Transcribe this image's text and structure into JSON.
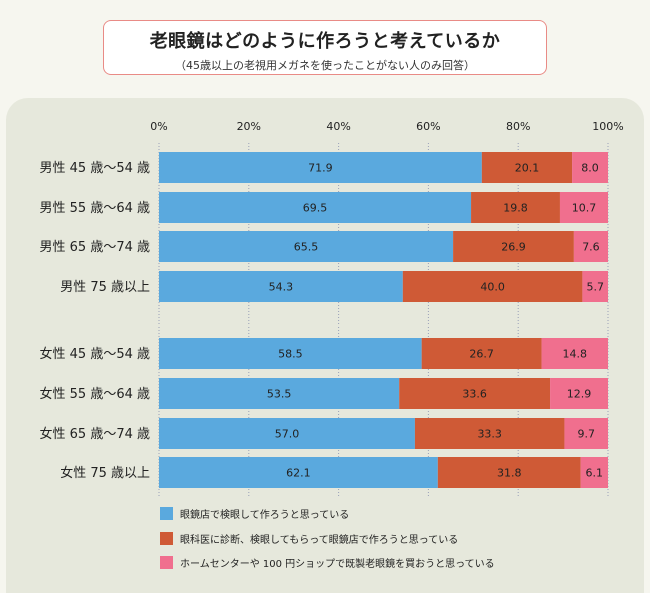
{
  "header": {
    "title": "老眼鏡はどのように作ろうと考えているか",
    "subtitle": "（45歳以上の老視用メガネを使ったことがない人のみ回答）"
  },
  "colors": {
    "series1": "#5aa9de",
    "series2": "#cf5a36",
    "series3": "#f06f8e",
    "grid": "#9aa1b8"
  },
  "chart_data": {
    "type": "bar",
    "orientation": "horizontal",
    "stacked": true,
    "xlim": [
      0,
      100
    ],
    "x_ticks": [
      "0%",
      "20%",
      "40%",
      "60%",
      "80%",
      "100%"
    ],
    "categories": [
      "男性 45 歳～54 歳",
      "男性 55 歳～64 歳",
      "男性 65 歳～74 歳",
      "男性 75 歳以上",
      "女性 45 歳～54 歳",
      "女性 55 歳～64 歳",
      "女性 65 歳～74 歳",
      "女性 75 歳以上"
    ],
    "series": [
      {
        "name": "眼鏡店で検眼して作ろうと思っている",
        "values": [
          71.9,
          69.5,
          65.5,
          54.3,
          58.5,
          53.5,
          57.0,
          62.1
        ]
      },
      {
        "name": "眼科医に診断、検眼してもらって眼鏡店で作ろうと思っている",
        "values": [
          20.1,
          19.8,
          26.9,
          40.0,
          26.7,
          33.6,
          33.3,
          31.8
        ]
      },
      {
        "name": "ホームセンターや 100 円ショップで既製老眼鏡を買おうと思っている",
        "values": [
          8.0,
          10.7,
          7.6,
          5.7,
          14.8,
          12.9,
          9.7,
          6.1
        ]
      }
    ],
    "value_labels": [
      [
        "71.9",
        "20.1",
        "8.0"
      ],
      [
        "69.5",
        "19.8",
        "10.7"
      ],
      [
        "65.5",
        "26.9",
        "7.6"
      ],
      [
        "54.3",
        "40.0",
        "5.7"
      ],
      [
        "58.5",
        "26.7",
        "14.8"
      ],
      [
        "53.5",
        "33.6",
        "12.9"
      ],
      [
        "57.0",
        "33.3",
        "9.7"
      ],
      [
        "62.1",
        "31.8",
        "6.1"
      ]
    ],
    "grid": true,
    "legend_position": "bottom"
  }
}
